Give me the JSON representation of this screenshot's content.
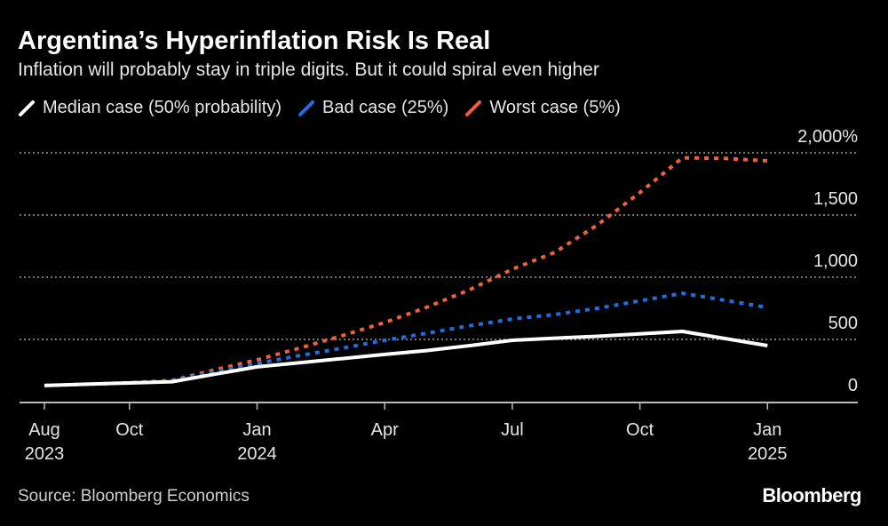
{
  "title": "Argentina’s Hyperinflation Risk Is Real",
  "subtitle": "Inflation will probably stay in triple digits. But it could spiral even higher",
  "source": "Source: Bloomberg Economics",
  "logo": "Bloomberg",
  "chart_data": {
    "type": "line",
    "title": "Argentina’s Hyperinflation Risk Is Real",
    "x": [
      "2023-08",
      "2023-09",
      "2023-10",
      "2023-11",
      "2023-12",
      "2024-01",
      "2024-02",
      "2024-03",
      "2024-04",
      "2024-05",
      "2024-06",
      "2024-07",
      "2024-08",
      "2024-09",
      "2024-10",
      "2024-11",
      "2024-12",
      "2025-01"
    ],
    "x_ticks": [
      {
        "month": "2023-08",
        "label": "Aug",
        "sub": "2023"
      },
      {
        "month": "2023-10",
        "label": "Oct",
        "sub": ""
      },
      {
        "month": "2024-01",
        "label": "Jan",
        "sub": "2024"
      },
      {
        "month": "2024-04",
        "label": "Apr",
        "sub": ""
      },
      {
        "month": "2024-07",
        "label": "Jul",
        "sub": ""
      },
      {
        "month": "2024-10",
        "label": "Oct",
        "sub": ""
      },
      {
        "month": "2025-01",
        "label": "Jan",
        "sub": "2025"
      }
    ],
    "y_ticks": [
      {
        "value": 0,
        "label": "0"
      },
      {
        "value": 500,
        "label": "500"
      },
      {
        "value": 1000,
        "label": "1,000"
      },
      {
        "value": 1500,
        "label": "1,500"
      },
      {
        "value": 2000,
        "label": "2,000%"
      }
    ],
    "ylim": [
      0,
      2000
    ],
    "grid": true,
    "legend": "top-left",
    "series": [
      {
        "name": "Median case (50% probability)",
        "color": "#ffffff",
        "style": "solid",
        "values": [
          129,
          140,
          150,
          160,
          220,
          279,
          313,
          346,
          379,
          411,
          450,
          493,
          510,
          525,
          545,
          564,
          507,
          450
        ]
      },
      {
        "name": "Bad case (25%)",
        "color": "#1f6fe0",
        "style": "dotted",
        "values": [
          129,
          140,
          150,
          165,
          240,
          307,
          370,
          430,
          493,
          550,
          610,
          664,
          700,
          750,
          810,
          871,
          814,
          757
        ]
      },
      {
        "name": "Worst case (5%)",
        "color": "#f0603a",
        "style": "dotted",
        "values": [
          129,
          140,
          152,
          170,
          255,
          336,
          430,
          530,
          636,
          760,
          900,
          1064,
          1200,
          1420,
          1680,
          1960,
          1955,
          1936
        ]
      }
    ]
  }
}
